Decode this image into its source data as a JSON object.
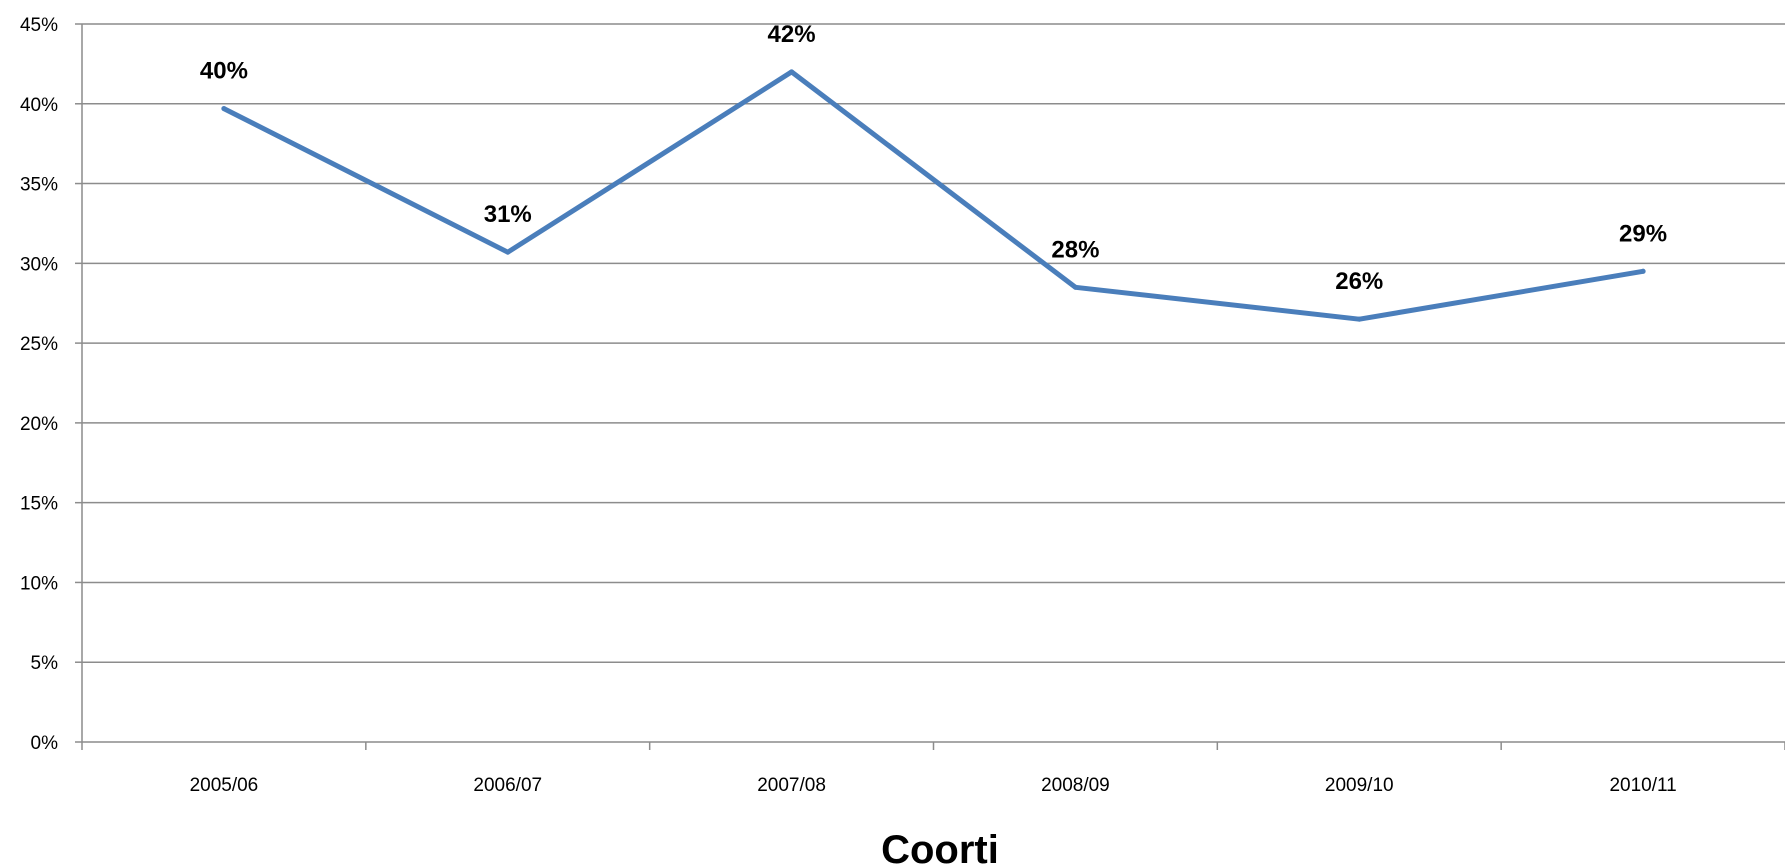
{
  "chart_data": {
    "type": "line",
    "title": "",
    "xlabel": "Coorti",
    "ylabel": "",
    "categories": [
      "2005/06",
      "2006/07",
      "2007/08",
      "2008/09",
      "2009/10",
      "2010/11"
    ],
    "series": [
      {
        "values": [
          39.7,
          30.7,
          42.0,
          28.5,
          26.5,
          29.5
        ],
        "data_labels": [
          "40%",
          "31%",
          "42%",
          "28%",
          "26%",
          "29%"
        ],
        "color": "#4a7ebb"
      }
    ],
    "ylim": [
      0,
      45
    ],
    "y_ticks": [
      0,
      5,
      10,
      15,
      20,
      25,
      30,
      35,
      40,
      45
    ],
    "y_tick_labels": [
      "0%",
      "5%",
      "10%",
      "15%",
      "20%",
      "25%",
      "30%",
      "35%",
      "40%",
      "45%"
    ],
    "grid": true,
    "legend": "none"
  }
}
